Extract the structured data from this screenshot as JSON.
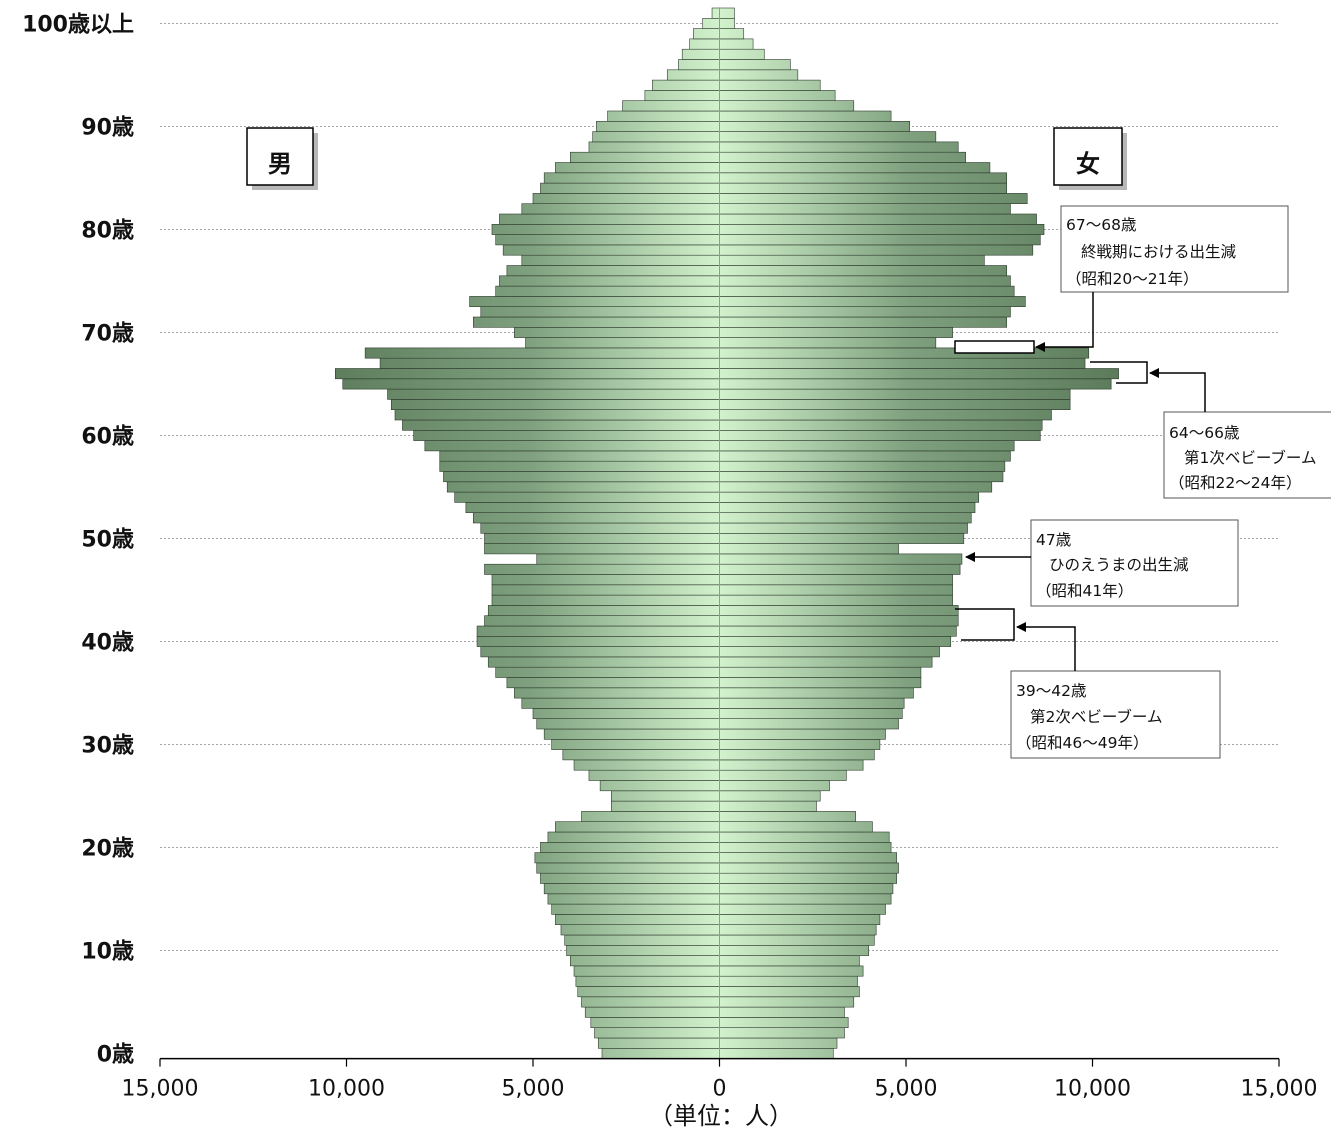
{
  "chart_data": {
    "type": "bar",
    "subtype": "population-pyramid",
    "title": "",
    "xlabel": "（単位：人）",
    "x_tick_labels": [
      "15,000",
      "10,000",
      "5,000",
      "0",
      "5,000",
      "10,000",
      "15,000"
    ],
    "x_tick_values": [
      -15000,
      -10000,
      -5000,
      0,
      5000,
      10000,
      15000
    ],
    "y_tick_labels": [
      "0歳",
      "10歳",
      "20歳",
      "30歳",
      "40歳",
      "50歳",
      "60歳",
      "70歳",
      "80歳",
      "90歳",
      "100歳以上"
    ],
    "y_tick_values": [
      0,
      10,
      20,
      30,
      40,
      50,
      60,
      70,
      80,
      90,
      100
    ],
    "xlim": [
      -15000,
      15000
    ],
    "ylim": [
      0,
      100
    ],
    "grid": "horizontal",
    "series": [
      {
        "name": "男",
        "values": [
          3150,
          3250,
          3350,
          3450,
          3600,
          3700,
          3800,
          3850,
          3900,
          4000,
          4100,
          4150,
          4250,
          4400,
          4500,
          4600,
          4700,
          4800,
          4900,
          4950,
          4800,
          4600,
          4400,
          3700,
          2900,
          2900,
          3200,
          3500,
          3900,
          4200,
          4500,
          4700,
          4900,
          5000,
          5300,
          5500,
          5700,
          6000,
          6200,
          6400,
          6500,
          6500,
          6300,
          6200,
          6100,
          6100,
          6100,
          6300,
          4900,
          6300,
          6300,
          6400,
          6600,
          6800,
          7100,
          7300,
          7400,
          7500,
          7500,
          7900,
          8200,
          8500,
          8700,
          8800,
          8900,
          10100,
          10300,
          9100,
          9500,
          5200,
          5500,
          6600,
          6400,
          6700,
          6000,
          5900,
          5700,
          5300,
          5800,
          6000,
          6100,
          5900,
          5300,
          5000,
          4800,
          4700,
          4400,
          4000,
          3500,
          3400,
          3300,
          3000,
          2600,
          2000,
          1800,
          1400,
          1100,
          1000,
          800,
          700,
          450,
          200
        ]
      },
      {
        "name": "女",
        "values": [
          3050,
          3150,
          3350,
          3450,
          3350,
          3600,
          3750,
          3700,
          3850,
          3750,
          4000,
          4150,
          4200,
          4300,
          4450,
          4600,
          4650,
          4750,
          4800,
          4750,
          4600,
          4550,
          4100,
          3650,
          2600,
          2700,
          2950,
          3400,
          3850,
          4150,
          4300,
          4450,
          4800,
          4900,
          4950,
          5200,
          5400,
          5400,
          5700,
          5900,
          6200,
          6350,
          6400,
          6400,
          6250,
          6250,
          6250,
          6450,
          6500,
          4800,
          6550,
          6650,
          6750,
          6850,
          6950,
          7300,
          7600,
          7650,
          7800,
          7900,
          8600,
          8650,
          8900,
          9400,
          9400,
          10500,
          10700,
          9800,
          9900,
          5800,
          6250,
          7700,
          7800,
          8200,
          7900,
          7800,
          7700,
          7100,
          8400,
          8600,
          8700,
          8500,
          7800,
          8250,
          7700,
          7700,
          7250,
          6600,
          6400,
          5800,
          5100,
          4600,
          3600,
          3100,
          2700,
          2100,
          1900,
          1200,
          900,
          650,
          400,
          400
        ]
      }
    ],
    "sex_labels": {
      "male": "男",
      "female": "女"
    },
    "annotations": [
      {
        "lines": [
          "67～68歳",
          "終戦期における出生減",
          "（昭和20～21年）"
        ],
        "age_range": [
          67,
          68
        ]
      },
      {
        "lines": [
          "64～66歳",
          "第1次ベビーブーム",
          "（昭和22～24年）"
        ],
        "age_range": [
          64,
          66
        ]
      },
      {
        "lines": [
          "47歳",
          "ひのえうまの出生減",
          "（昭和41年）"
        ],
        "age_range": [
          47,
          47
        ]
      },
      {
        "lines": [
          "39～42歳",
          "第2次ベビーブーム",
          "（昭和46～49年）"
        ],
        "age_range": [
          39,
          42
        ]
      }
    ],
    "colors": {
      "bar_center": "#cdeec9",
      "bar_edge": "#6a8f6a",
      "bar_outline": "#2c3a2c",
      "grid": "#9a9a9a"
    }
  }
}
